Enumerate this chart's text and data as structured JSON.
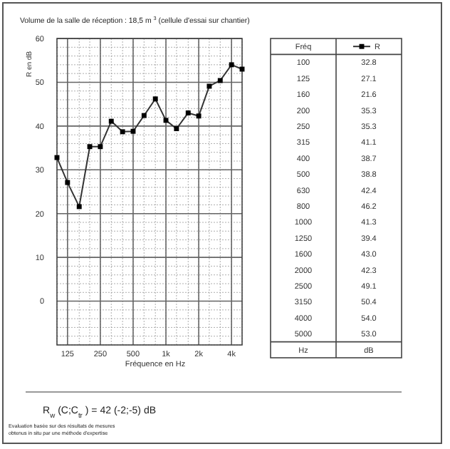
{
  "chart_data": {
    "type": "line",
    "title": "Volume de la salle de réception        : 18,5 m $^{3}$ (cellule d'essai sur chantier)",
    "xlabel": "Fréquence en Hz",
    "ylabel": "R en dB",
    "x": [
      100,
      125,
      160,
      200,
      250,
      315,
      400,
      500,
      630,
      800,
      1000,
      1250,
      1600,
      2000,
      2500,
      3150,
      4000,
      5000
    ],
    "series": [
      {
        "name": "R",
        "color": "#333333",
        "values": [
          32.8,
          27.1,
          21.6,
          35.3,
          35.3,
          41.1,
          38.7,
          38.8,
          42.4,
          46.2,
          41.3,
          39.4,
          43.0,
          42.3,
          49.1,
          50.4,
          54.0,
          53.0
        ]
      }
    ],
    "log": "x",
    "xlim": [
      100,
      5000
    ],
    "xticks": [
      {
        "value": 125,
        "label": "125"
      },
      {
        "value": 250,
        "label": "250"
      },
      {
        "value": 500,
        "label": "500"
      },
      {
        "value": 1000,
        "label": "1k"
      },
      {
        "value": 2000,
        "label": "2k"
      },
      {
        "value": 4000,
        "label": "4k"
      }
    ],
    "ylim": [
      -10,
      60
    ],
    "yticks": [
      0,
      10,
      20,
      30,
      40,
      50,
      60
    ],
    "grid": true,
    "marker": "square",
    "line_style": "solid",
    "legend": "right",
    "annotations": [
      "Fréq",
      "100",
      "125",
      "160",
      "200",
      "250",
      "315",
      "400",
      "500",
      "630",
      "800",
      "1000",
      "1250",
      "1600",
      "2000",
      "2500",
      "3150",
      "4000",
      "5000",
      "32.8",
      "27.1",
      "21.6",
      "35.3",
      "35.3",
      "41.1",
      "38.7",
      "38.8",
      "42.4",
      "46.2",
      "41.3",
      "39.4",
      "43.0",
      "42.3",
      "49.1",
      "50.4",
      "54.0",
      "53.0",
      "Hz",
      "dB",
      "R$_{w}$ (C;C$_{tr}$) = 42 (-2;-5) dB",
      "Evaluation basée sur des          résultats de mesures",
      "obtenus in situ par une méthode d'expertise"
    ]
  }
}
